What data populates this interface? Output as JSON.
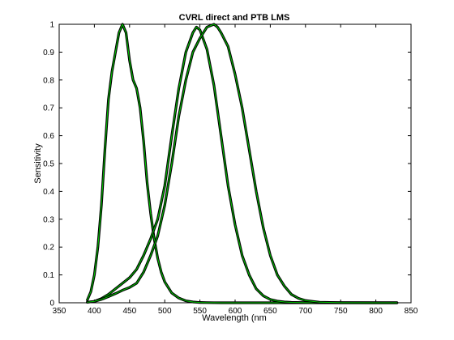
{
  "chart_data": {
    "type": "line",
    "title": "CVRL direct and PTB LMS",
    "xlabel": "Wavelength (nm",
    "ylabel": "Sensitivity",
    "xlim": [
      350,
      850
    ],
    "ylim": [
      0,
      1
    ],
    "xticks": [
      "350",
      "400",
      "450",
      "500",
      "550",
      "600",
      "650",
      "700",
      "750",
      "800",
      "850"
    ],
    "yticks": [
      "0",
      "0.1",
      "0.2",
      "0.3",
      "0.4",
      "0.5",
      "0.6",
      "0.7",
      "0.8",
      "0.9",
      "1"
    ],
    "grid": false,
    "legend": "none",
    "outer_color": "#000000",
    "inner_color": "#00cc00",
    "series": [
      {
        "x": [
          390,
          395,
          400,
          405,
          410,
          415,
          420,
          425,
          430,
          435,
          440,
          445,
          450,
          455,
          460,
          465,
          470,
          475,
          480,
          485,
          490,
          495,
          500,
          510,
          520,
          530,
          540,
          550,
          560,
          570,
          580,
          600,
          650,
          700,
          750,
          800,
          830
        ],
        "values": [
          0.01,
          0.04,
          0.1,
          0.2,
          0.35,
          0.55,
          0.73,
          0.83,
          0.9,
          0.97,
          1.0,
          0.97,
          0.87,
          0.8,
          0.77,
          0.7,
          0.58,
          0.43,
          0.32,
          0.23,
          0.16,
          0.11,
          0.075,
          0.035,
          0.017,
          0.007,
          0.003,
          0.001,
          0.0005,
          0.0002,
          0.0001,
          0.0,
          0.0,
          0.0,
          0.0,
          0.0,
          0.0
        ]
      },
      {
        "x": [
          390,
          400,
          410,
          420,
          430,
          440,
          450,
          460,
          470,
          480,
          490,
          500,
          510,
          520,
          530,
          540,
          545,
          550,
          560,
          570,
          580,
          590,
          600,
          610,
          620,
          630,
          640,
          650,
          660,
          670,
          680,
          700,
          750,
          800,
          830
        ],
        "values": [
          0.002,
          0.005,
          0.015,
          0.03,
          0.05,
          0.07,
          0.09,
          0.12,
          0.17,
          0.23,
          0.3,
          0.42,
          0.6,
          0.77,
          0.9,
          0.97,
          0.99,
          0.98,
          0.91,
          0.78,
          0.6,
          0.42,
          0.28,
          0.17,
          0.1,
          0.05,
          0.025,
          0.012,
          0.006,
          0.003,
          0.0015,
          0.0004,
          0.0,
          0.0,
          0.0
        ]
      },
      {
        "x": [
          390,
          400,
          410,
          420,
          430,
          440,
          450,
          460,
          470,
          480,
          490,
          500,
          510,
          520,
          530,
          540,
          550,
          560,
          570,
          575,
          580,
          590,
          600,
          610,
          620,
          630,
          640,
          650,
          660,
          670,
          680,
          690,
          700,
          720,
          750,
          800,
          830
        ],
        "values": [
          0.002,
          0.005,
          0.012,
          0.022,
          0.033,
          0.045,
          0.055,
          0.07,
          0.11,
          0.17,
          0.24,
          0.35,
          0.5,
          0.67,
          0.8,
          0.9,
          0.95,
          0.99,
          1.0,
          0.99,
          0.97,
          0.92,
          0.82,
          0.7,
          0.55,
          0.4,
          0.27,
          0.17,
          0.1,
          0.06,
          0.03,
          0.016,
          0.008,
          0.002,
          0.0003,
          0.0,
          0.0
        ]
      }
    ]
  }
}
